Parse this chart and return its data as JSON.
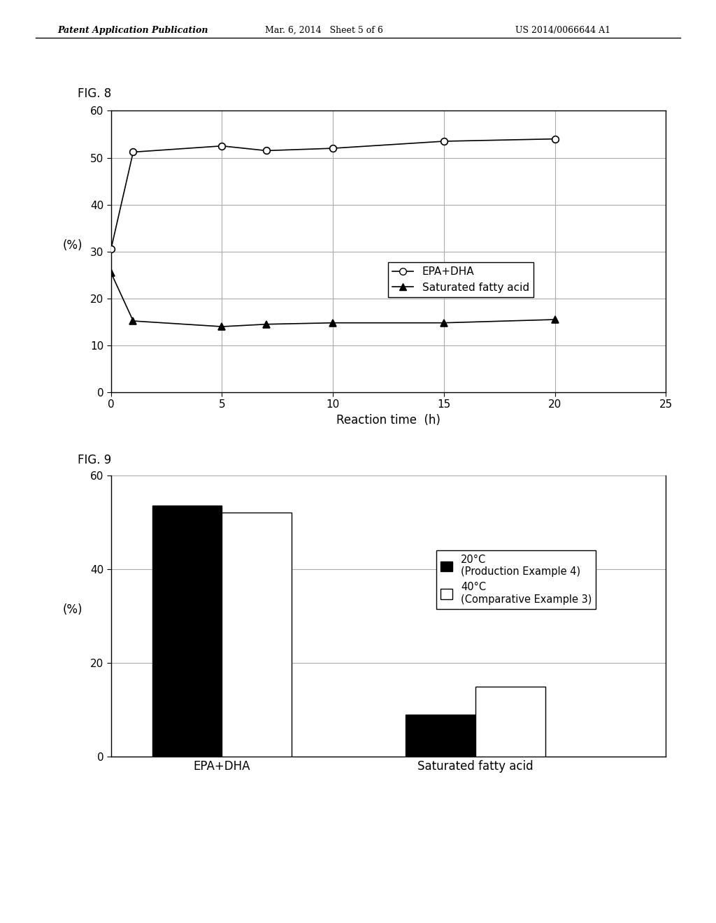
{
  "fig8": {
    "title": "FIG. 8",
    "epa_dha_x": [
      0,
      1,
      5,
      7,
      10,
      15,
      20
    ],
    "epa_dha_y": [
      30.5,
      51.2,
      52.5,
      51.5,
      52.0,
      53.5,
      54.0
    ],
    "sat_x": [
      0,
      1,
      5,
      7,
      10,
      15,
      20
    ],
    "sat_y": [
      25.5,
      15.2,
      14.0,
      14.5,
      14.8,
      14.8,
      15.5
    ],
    "xlabel": "Reaction time  （h）",
    "ylabel": "(%)",
    "xlim": [
      0,
      25
    ],
    "ylim": [
      0,
      60
    ],
    "xticks": [
      0,
      5,
      10,
      15,
      20,
      25
    ],
    "yticks": [
      0,
      10,
      20,
      30,
      40,
      50,
      60
    ],
    "legend_epa": "EPA+DHA",
    "legend_sat": "Saturated fatty acid"
  },
  "fig9": {
    "title": "FIG. 9",
    "categories": [
      "EPA+DHA",
      "Saturated fatty acid"
    ],
    "val_20c": [
      53.5,
      9.0
    ],
    "val_40c": [
      52.0,
      15.0
    ],
    "ylabel": "(%)",
    "ylim": [
      0,
      60
    ],
    "yticks": [
      0,
      20,
      40,
      60
    ],
    "legend_20c": "20°C\n(Production Example 4)",
    "legend_40c": "40°C\n(Comparative Example 3)",
    "color_20c": "#000000",
    "color_40c": "#ffffff"
  },
  "header_left": "Patent Application Publication",
  "header_mid": "Mar. 6, 2014   Sheet 5 of 6",
  "header_right": "US 2014/0066644 A1",
  "bg_color": "#ffffff",
  "text_color": "#000000",
  "line_color": "#000000",
  "grid_color": "#aaaaaa"
}
